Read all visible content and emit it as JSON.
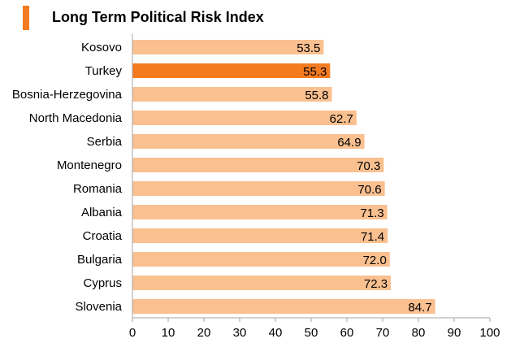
{
  "chart_data": {
    "type": "bar",
    "orientation": "horizontal",
    "title": "Long Term Political Risk Index",
    "categories": [
      "Kosovo",
      "Turkey",
      "Bosnia-Herzegovina",
      "North Macedonia",
      "Serbia",
      "Montenegro",
      "Romania",
      "Albania",
      "Croatia",
      "Bulgaria",
      "Cyprus",
      "Slovenia"
    ],
    "values": [
      53.5,
      55.3,
      55.8,
      62.7,
      64.9,
      70.3,
      70.6,
      71.3,
      71.4,
      72.0,
      72.3,
      84.7
    ],
    "value_labels": [
      "53.5",
      "55.3",
      "55.8",
      "62.7",
      "64.9",
      "70.3",
      "70.6",
      "71.3",
      "71.4",
      "72.0",
      "72.3",
      "84.7"
    ],
    "highlight_category": "Turkey",
    "xlim": [
      0,
      100
    ],
    "xticks": [
      0,
      10,
      20,
      30,
      40,
      50,
      60,
      70,
      80,
      90,
      100
    ],
    "xlabel": "",
    "ylabel": "",
    "grid": false,
    "legend": "none"
  },
  "colors": {
    "bar": "#fac090",
    "highlight": "#f47b20",
    "title_accent": "#f47b20",
    "axis": "#a6a6a6",
    "text": "#000000"
  }
}
